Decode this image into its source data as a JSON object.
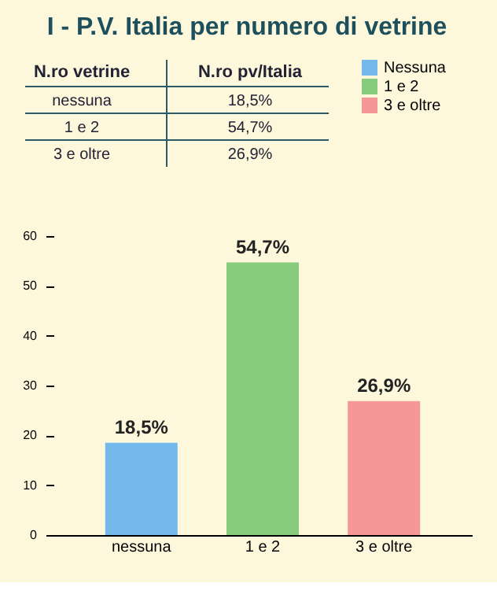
{
  "chart_data": {
    "type": "bar",
    "title": "I - P.V. Italia per numero di vetrine",
    "categories": [
      "nessuna",
      "1 e 2",
      "3 e oltre"
    ],
    "series": [
      {
        "name": "Nessuna",
        "color": "#74b9ec",
        "values": [
          18.5,
          null,
          null
        ],
        "value_labels": [
          "18,5%",
          null,
          null
        ]
      },
      {
        "name": "1 e 2",
        "color": "#86cc7c",
        "values": [
          null,
          54.7,
          null
        ],
        "value_labels": [
          null,
          "54,7%",
          null
        ]
      },
      {
        "name": "3 e oltre",
        "color": "#f59797",
        "values": [
          null,
          null,
          26.9
        ],
        "value_labels": [
          null,
          null,
          "26,9%"
        ]
      }
    ],
    "annotations": [
      "N.ro vetrine",
      "N.ro pv/Italia"
    ],
    "ylim": [
      0,
      60
    ],
    "yticks": [
      0,
      10,
      20,
      30,
      40,
      50,
      60
    ],
    "grid": false,
    "legend": "top right"
  }
}
